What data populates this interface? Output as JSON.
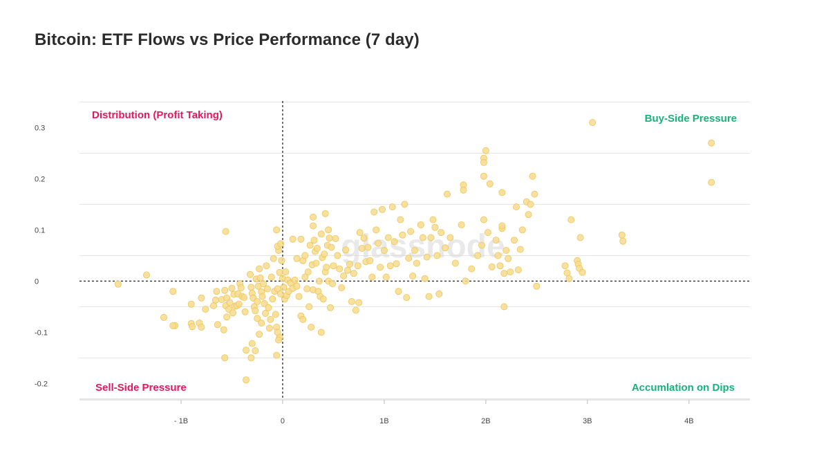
{
  "page": {
    "title": "Bitcoin: ETF Flows vs Price Performance (7 day)"
  },
  "watermark": "glassnode",
  "quadrants": {
    "top_left": "Distribution (Profit Taking)",
    "top_right": "Buy-Side Pressure",
    "bottom_left": "Sell-Side Pressure",
    "bottom_right": "Accumlation on Dips"
  },
  "colors": {
    "point_fill": "#f7dc8e",
    "point_stroke": "#ecc65a",
    "negative_label": "#e6175c",
    "positive_label": "#16b27a",
    "grid": "#e3e3e3"
  },
  "chart_data": {
    "type": "scatter",
    "title": "Bitcoin: ETF Flows vs Price Performance (7 day)",
    "xlim": [
      -2.0,
      4.6
    ],
    "ylim": [
      -0.232,
      0.352
    ],
    "x_ticks": [
      {
        "value": -1,
        "label": "- 1B"
      },
      {
        "value": 0,
        "label": "0"
      },
      {
        "value": 1,
        "label": "1B"
      },
      {
        "value": 2,
        "label": "2B"
      },
      {
        "value": 3,
        "label": "3B"
      },
      {
        "value": 4,
        "label": "4B"
      }
    ],
    "y_ticks": [
      {
        "value": 0.3,
        "label": "0.3"
      },
      {
        "value": 0.2,
        "label": "0.2"
      },
      {
        "value": 0.1,
        "label": "0.1"
      },
      {
        "value": 0,
        "label": "0"
      },
      {
        "value": -0.1,
        "label": "-0.1"
      },
      {
        "value": -0.2,
        "label": "-0.2"
      }
    ],
    "grid": true,
    "reference_lines": {
      "x": 0,
      "y": 0
    },
    "points": [
      [
        -1.62,
        -0.006
      ],
      [
        -1.34,
        0.012
      ],
      [
        -1.08,
        -0.02
      ],
      [
        -1.17,
        -0.071
      ],
      [
        -1.06,
        -0.087
      ],
      [
        -1.08,
        -0.087
      ],
      [
        -0.9,
        -0.045
      ],
      [
        -0.9,
        -0.083
      ],
      [
        -0.89,
        -0.089
      ],
      [
        -0.82,
        -0.082
      ],
      [
        -0.8,
        -0.09
      ],
      [
        -0.8,
        -0.033
      ],
      [
        -0.76,
        -0.055
      ],
      [
        -0.68,
        -0.048
      ],
      [
        -0.66,
        -0.037
      ],
      [
        -0.65,
        -0.02
      ],
      [
        -0.64,
        -0.085
      ],
      [
        -0.6,
        -0.036
      ],
      [
        -0.58,
        -0.095
      ],
      [
        -0.57,
        -0.018
      ],
      [
        -0.56,
        -0.048
      ],
      [
        -0.55,
        -0.033
      ],
      [
        -0.53,
        -0.055
      ],
      [
        -0.52,
        -0.042
      ],
      [
        -0.5,
        -0.014
      ],
      [
        -0.49,
        -0.062
      ],
      [
        -0.48,
        -0.026
      ],
      [
        -0.47,
        -0.049
      ],
      [
        -0.45,
        -0.048
      ],
      [
        -0.44,
        -0.025
      ],
      [
        -0.43,
        -0.045
      ],
      [
        -0.42,
        -0.005
      ],
      [
        -0.41,
        -0.013
      ],
      [
        -0.4,
        -0.03
      ],
      [
        -0.38,
        -0.032
      ],
      [
        -0.37,
        -0.06
      ],
      [
        -0.56,
        0.097
      ],
      [
        -0.57,
        -0.15
      ],
      [
        -0.55,
        -0.07
      ],
      [
        -0.36,
        -0.135
      ],
      [
        -0.36,
        -0.193
      ],
      [
        -0.31,
        -0.15
      ],
      [
        -0.3,
        -0.122
      ],
      [
        -0.27,
        -0.136
      ],
      [
        -0.25,
        -0.073
      ],
      [
        -0.23,
        -0.104
      ],
      [
        -0.21,
        -0.082
      ],
      [
        -0.32,
        0.013
      ],
      [
        -0.31,
        -0.012
      ],
      [
        -0.3,
        -0.024
      ],
      [
        -0.29,
        -0.033
      ],
      [
        -0.28,
        -0.05
      ],
      [
        -0.27,
        -0.058
      ],
      [
        -0.26,
        0.004
      ],
      [
        -0.25,
        -0.04
      ],
      [
        -0.24,
        -0.01
      ],
      [
        -0.23,
        0.024
      ],
      [
        -0.22,
        0.006
      ],
      [
        -0.21,
        -0.021
      ],
      [
        -0.2,
        -0.03
      ],
      [
        -0.19,
        -0.005
      ],
      [
        -0.18,
        -0.044
      ],
      [
        -0.17,
        -0.063
      ],
      [
        -0.16,
        0.03
      ],
      [
        -0.15,
        -0.015
      ],
      [
        -0.14,
        -0.052
      ],
      [
        -0.13,
        -0.092
      ],
      [
        -0.12,
        -0.075
      ],
      [
        -0.11,
        0.008
      ],
      [
        -0.1,
        -0.035
      ],
      [
        -0.09,
        0.044
      ],
      [
        -0.08,
        -0.02
      ],
      [
        -0.07,
        -0.065
      ],
      [
        -0.06,
        -0.09
      ],
      [
        -0.05,
        -0.015
      ],
      [
        -0.04,
        0.06
      ],
      [
        -0.03,
        0.017
      ],
      [
        -0.02,
        -0.025
      ],
      [
        -0.06,
        -0.145
      ],
      [
        -0.03,
        -0.11
      ],
      [
        -0.05,
        -0.1
      ],
      [
        -0.04,
        -0.115
      ],
      [
        -0.06,
        0.1
      ],
      [
        -0.05,
        0.068
      ],
      [
        -0.02,
        0.073
      ],
      [
        -0.01,
        0.04
      ],
      [
        0.0,
        0.005
      ],
      [
        0.01,
        -0.012
      ],
      [
        0.02,
        -0.035
      ],
      [
        0.03,
        0.018
      ],
      [
        0.04,
        -0.028
      ],
      [
        0.05,
        0.002
      ],
      [
        0.06,
        -0.02
      ],
      [
        0.08,
        -0.004
      ],
      [
        0.1,
        -0.014
      ],
      [
        0.12,
        0.002
      ],
      [
        0.14,
        -0.01
      ],
      [
        0.16,
        -0.03
      ],
      [
        0.18,
        -0.068
      ],
      [
        0.2,
        -0.075
      ],
      [
        0.22,
        0.008
      ],
      [
        0.1,
        0.082
      ],
      [
        0.14,
        0.044
      ],
      [
        0.18,
        0.082
      ],
      [
        0.2,
        0.04
      ],
      [
        0.22,
        0.05
      ],
      [
        0.24,
        -0.015
      ],
      [
        0.25,
        0.018
      ],
      [
        0.26,
        -0.05
      ],
      [
        0.27,
        0.07
      ],
      [
        0.28,
        -0.09
      ],
      [
        0.29,
        0.032
      ],
      [
        0.3,
        -0.017
      ],
      [
        0.31,
        0.08
      ],
      [
        0.32,
        0.058
      ],
      [
        0.33,
        0.035
      ],
      [
        0.34,
        0.064
      ],
      [
        0.35,
        -0.02
      ],
      [
        0.36,
        0.0
      ],
      [
        0.37,
        -0.03
      ],
      [
        0.38,
        0.092
      ],
      [
        0.39,
        0.046
      ],
      [
        0.4,
        -0.035
      ],
      [
        0.41,
        0.053
      ],
      [
        0.42,
        0.018
      ],
      [
        0.43,
        0.027
      ],
      [
        0.44,
        0.07
      ],
      [
        0.45,
        0.0
      ],
      [
        0.46,
        0.084
      ],
      [
        0.47,
        -0.052
      ],
      [
        0.48,
        0.066
      ],
      [
        0.49,
        -0.005
      ],
      [
        0.5,
        0.03
      ],
      [
        0.3,
        0.125
      ],
      [
        0.3,
        0.108
      ],
      [
        0.42,
        0.132
      ],
      [
        0.45,
        0.1
      ],
      [
        0.38,
        -0.1
      ],
      [
        0.52,
        0.083
      ],
      [
        0.54,
        0.05
      ],
      [
        0.56,
        0.024
      ],
      [
        0.58,
        -0.013
      ],
      [
        0.6,
        0.01
      ],
      [
        0.62,
        0.061
      ],
      [
        0.64,
        0.021
      ],
      [
        0.66,
        0.033
      ],
      [
        0.68,
        -0.04
      ],
      [
        0.7,
        0.015
      ],
      [
        0.72,
        -0.057
      ],
      [
        0.74,
        0.03
      ],
      [
        0.75,
        -0.042
      ],
      [
        0.76,
        0.095
      ],
      [
        0.78,
        0.064
      ],
      [
        0.8,
        0.084
      ],
      [
        0.82,
        0.038
      ],
      [
        0.84,
        0.066
      ],
      [
        0.86,
        0.04
      ],
      [
        0.88,
        0.008
      ],
      [
        0.9,
        0.135
      ],
      [
        0.92,
        0.1
      ],
      [
        0.94,
        0.074
      ],
      [
        0.96,
        0.027
      ],
      [
        0.98,
        0.14
      ],
      [
        1.0,
        0.06
      ],
      [
        1.02,
        0.008
      ],
      [
        1.04,
        0.085
      ],
      [
        1.06,
        0.03
      ],
      [
        1.08,
        0.145
      ],
      [
        1.1,
        0.077
      ],
      [
        1.12,
        0.034
      ],
      [
        1.14,
        -0.02
      ],
      [
        1.16,
        0.12
      ],
      [
        1.18,
        0.09
      ],
      [
        1.2,
        0.15
      ],
      [
        1.22,
        -0.032
      ],
      [
        1.24,
        0.045
      ],
      [
        1.26,
        0.097
      ],
      [
        1.28,
        0.01
      ],
      [
        1.3,
        0.06
      ],
      [
        1.32,
        0.035
      ],
      [
        1.36,
        0.11
      ],
      [
        1.38,
        0.085
      ],
      [
        1.4,
        0.005
      ],
      [
        1.42,
        0.047
      ],
      [
        1.44,
        -0.03
      ],
      [
        1.46,
        0.085
      ],
      [
        1.48,
        0.12
      ],
      [
        1.5,
        0.105
      ],
      [
        1.52,
        0.05
      ],
      [
        1.54,
        -0.025
      ],
      [
        1.56,
        0.095
      ],
      [
        1.6,
        0.065
      ],
      [
        1.62,
        0.17
      ],
      [
        1.65,
        0.085
      ],
      [
        1.7,
        0.035
      ],
      [
        1.76,
        0.11
      ],
      [
        1.78,
        0.188
      ],
      [
        1.78,
        0.178
      ],
      [
        1.8,
        0.0
      ],
      [
        1.86,
        0.024
      ],
      [
        1.92,
        0.05
      ],
      [
        1.96,
        0.07
      ],
      [
        1.98,
        0.12
      ],
      [
        1.98,
        0.205
      ],
      [
        2.0,
        0.255
      ],
      [
        2.02,
        0.095
      ],
      [
        2.04,
        0.19
      ],
      [
        2.06,
        0.028
      ],
      [
        2.1,
        0.08
      ],
      [
        2.12,
        0.05
      ],
      [
        2.14,
        0.03
      ],
      [
        2.16,
        0.173
      ],
      [
        2.16,
        0.103
      ],
      [
        2.18,
        0.015
      ],
      [
        2.18,
        -0.05
      ],
      [
        2.2,
        0.06
      ],
      [
        2.22,
        0.044
      ],
      [
        2.24,
        0.018
      ],
      [
        2.28,
        0.08
      ],
      [
        2.3,
        0.145
      ],
      [
        2.32,
        0.022
      ],
      [
        2.34,
        0.062
      ],
      [
        2.36,
        0.1
      ],
      [
        2.4,
        0.155
      ],
      [
        2.42,
        0.13
      ],
      [
        2.44,
        0.15
      ],
      [
        2.46,
        0.205
      ],
      [
        2.48,
        0.17
      ],
      [
        2.5,
        -0.01
      ],
      [
        1.98,
        0.24
      ],
      [
        1.98,
        0.232
      ],
      [
        2.16,
        0.108
      ],
      [
        2.78,
        0.03
      ],
      [
        2.8,
        0.016
      ],
      [
        2.82,
        0.005
      ],
      [
        2.84,
        0.12
      ],
      [
        2.9,
        0.04
      ],
      [
        2.91,
        0.033
      ],
      [
        2.92,
        0.025
      ],
      [
        2.93,
        0.085
      ],
      [
        2.95,
        0.017
      ],
      [
        3.05,
        0.31
      ],
      [
        3.34,
        0.09
      ],
      [
        3.35,
        0.078
      ],
      [
        4.22,
        0.193
      ],
      [
        4.22,
        0.27
      ]
    ]
  }
}
